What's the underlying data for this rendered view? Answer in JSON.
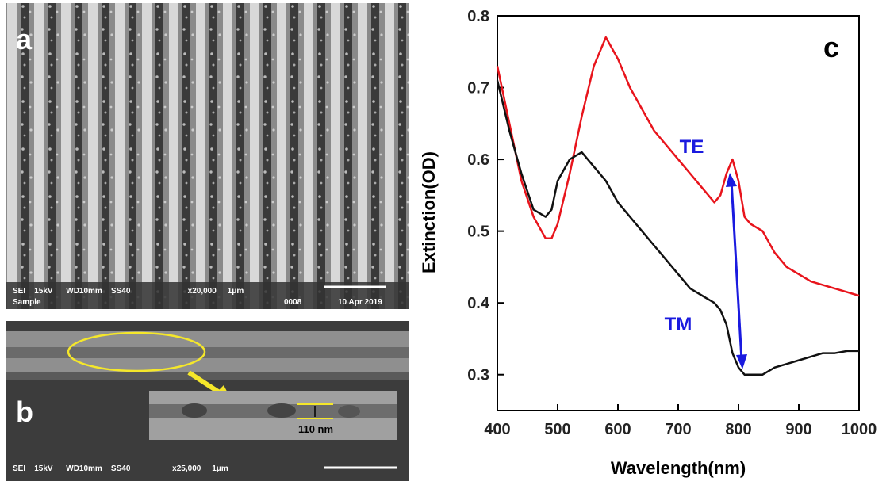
{
  "panels": {
    "a": {
      "label": "a",
      "info_line1": "SEI    15kV      WD10mm    SS40                          x20,000     1μm",
      "info_sample": "Sample",
      "info_number": "0008",
      "info_date": "10 Apr 2019"
    },
    "b": {
      "label": "b",
      "info_line1": "SEI    15kV      WD10mm    SS40                   x25,000     1μm",
      "thickness": "110 nm"
    }
  },
  "chart_data": {
    "type": "line",
    "panel_label": "c",
    "xlabel": "Wavelength(nm)",
    "ylabel": "Extinction(OD)",
    "x": [
      400,
      420,
      440,
      460,
      480,
      490,
      500,
      520,
      540,
      560,
      580,
      600,
      620,
      640,
      660,
      680,
      700,
      720,
      740,
      760,
      770,
      780,
      790,
      800,
      810,
      820,
      840,
      860,
      880,
      900,
      920,
      940,
      960,
      980,
      1000
    ],
    "series": [
      {
        "name": "TE",
        "color": "#e8141c",
        "values": [
          0.73,
          0.65,
          0.57,
          0.52,
          0.49,
          0.49,
          0.51,
          0.58,
          0.66,
          0.73,
          0.77,
          0.74,
          0.7,
          0.67,
          0.64,
          0.62,
          0.6,
          0.58,
          0.56,
          0.54,
          0.55,
          0.58,
          0.6,
          0.57,
          0.52,
          0.51,
          0.5,
          0.47,
          0.45,
          0.44,
          0.43,
          0.425,
          0.42,
          0.415,
          0.41
        ]
      },
      {
        "name": "TM",
        "color": "#111111",
        "values": [
          0.71,
          0.64,
          0.58,
          0.53,
          0.52,
          0.53,
          0.57,
          0.6,
          0.61,
          0.59,
          0.57,
          0.54,
          0.52,
          0.5,
          0.48,
          0.46,
          0.44,
          0.42,
          0.41,
          0.4,
          0.39,
          0.37,
          0.33,
          0.31,
          0.3,
          0.3,
          0.3,
          0.31,
          0.315,
          0.32,
          0.325,
          0.33,
          0.33,
          0.333,
          0.333
        ]
      }
    ],
    "xlim": [
      400,
      1000
    ],
    "ylim": [
      0.25,
      0.8
    ],
    "xticks": [
      400,
      500,
      600,
      700,
      800,
      900,
      1000
    ],
    "yticks": [
      0.3,
      0.4,
      0.5,
      0.6,
      0.7,
      0.8
    ]
  }
}
